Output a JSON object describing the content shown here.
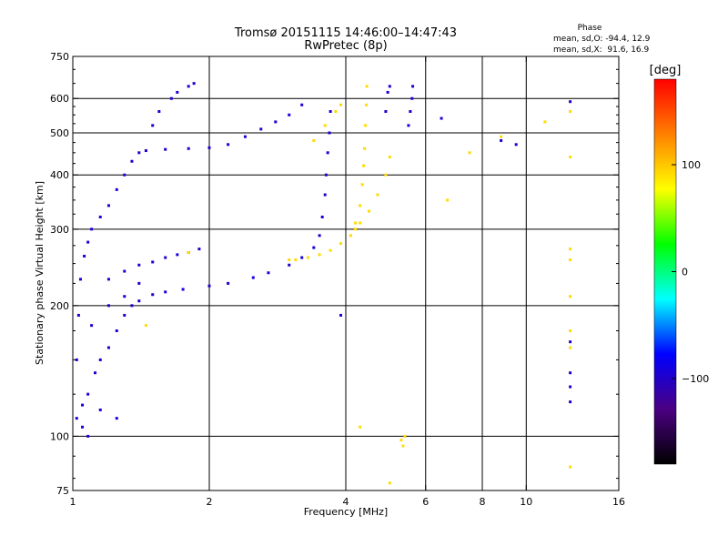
{
  "chart_data": {
    "type": "scatter",
    "title": "Tromsø 20151115 14:46:00–14:47:43",
    "subtitle": "RwPretec (8p)",
    "xlabel": "Frequency [MHz]",
    "ylabel": "Stationary phase Virtual Height [km]",
    "xscale": "log",
    "yscale": "log",
    "xlim": [
      1,
      16
    ],
    "ylim": [
      75,
      750
    ],
    "xticks": [
      1,
      2,
      4,
      6,
      8,
      10,
      16
    ],
    "xtick_labels": [
      "1",
      "2",
      "4",
      "6",
      "8",
      "10",
      "16"
    ],
    "x_vertical_gridlines": [
      2,
      4,
      6,
      8,
      10
    ],
    "yticks": [
      75,
      100,
      200,
      300,
      400,
      500,
      600,
      750
    ],
    "ytick_labels": [
      "75",
      "100",
      "200",
      "300",
      "400",
      "500",
      "600",
      "750"
    ],
    "y_horizontal_gridlines": [
      100,
      200,
      300,
      400,
      500,
      600
    ],
    "grid": true,
    "phase_stats": {
      "header": "Phase",
      "line_o": "mean, sd,O: -94.4, 12.9",
      "line_x": "mean, sd,X:  91.6, 16.9"
    },
    "colorbar": {
      "label": "[deg]",
      "range": [
        -180,
        180
      ],
      "ticks": [
        -100,
        0,
        100
      ],
      "tick_labels": [
        "−100",
        "0",
        "100"
      ],
      "colors": [
        "#000000",
        "#4b0082",
        "#0000ff",
        "#00ffff",
        "#00ff00",
        "#ffff00",
        "#ff8000",
        "#ff0000"
      ]
    },
    "series": [
      {
        "mode": "O",
        "phase_mean": -94.4,
        "points": [
          [
            1.02,
            110
          ],
          [
            1.05,
            118
          ],
          [
            1.08,
            125
          ],
          [
            1.12,
            140
          ],
          [
            1.15,
            150
          ],
          [
            1.2,
            160
          ],
          [
            1.25,
            175
          ],
          [
            1.3,
            190
          ],
          [
            1.35,
            200
          ],
          [
            1.4,
            205
          ],
          [
            1.5,
            212
          ],
          [
            1.6,
            215
          ],
          [
            1.75,
            218
          ],
          [
            2.0,
            222
          ],
          [
            2.2,
            225
          ],
          [
            2.5,
            232
          ],
          [
            2.7,
            238
          ],
          [
            3.0,
            248
          ],
          [
            3.2,
            258
          ],
          [
            3.4,
            272
          ],
          [
            3.5,
            290
          ],
          [
            3.55,
            320
          ],
          [
            3.6,
            360
          ],
          [
            3.62,
            400
          ],
          [
            3.65,
            450
          ],
          [
            3.68,
            500
          ],
          [
            3.7,
            560
          ],
          [
            1.02,
            150
          ],
          [
            1.03,
            190
          ],
          [
            1.04,
            230
          ],
          [
            1.06,
            260
          ],
          [
            1.08,
            280
          ],
          [
            1.1,
            300
          ],
          [
            1.15,
            320
          ],
          [
            1.2,
            340
          ],
          [
            1.25,
            370
          ],
          [
            1.3,
            400
          ],
          [
            1.35,
            430
          ],
          [
            1.4,
            450
          ],
          [
            1.45,
            455
          ],
          [
            1.6,
            458
          ],
          [
            1.8,
            460
          ],
          [
            2.0,
            462
          ],
          [
            2.2,
            470
          ],
          [
            2.4,
            490
          ],
          [
            2.6,
            510
          ],
          [
            2.8,
            530
          ],
          [
            3.0,
            550
          ],
          [
            3.2,
            580
          ],
          [
            1.2,
            230
          ],
          [
            1.3,
            240
          ],
          [
            1.4,
            248
          ],
          [
            1.5,
            252
          ],
          [
            1.6,
            258
          ],
          [
            1.7,
            262
          ],
          [
            1.8,
            265
          ],
          [
            1.9,
            270
          ],
          [
            1.65,
            600
          ],
          [
            1.7,
            620
          ],
          [
            1.8,
            640
          ],
          [
            1.85,
            650
          ],
          [
            1.5,
            520
          ],
          [
            1.55,
            560
          ],
          [
            5.5,
            520
          ],
          [
            5.55,
            560
          ],
          [
            5.6,
            600
          ],
          [
            5.62,
            640
          ],
          [
            4.9,
            560
          ],
          [
            4.95,
            620
          ],
          [
            5.0,
            640
          ],
          [
            1.05,
            105
          ],
          [
            1.08,
            100
          ],
          [
            1.15,
            115
          ],
          [
            1.25,
            110
          ],
          [
            1.1,
            180
          ],
          [
            1.2,
            200
          ],
          [
            1.3,
            210
          ],
          [
            1.4,
            225
          ],
          [
            12.5,
            590
          ],
          [
            12.5,
            120
          ],
          [
            12.5,
            130
          ],
          [
            12.5,
            165
          ],
          [
            12.5,
            140
          ],
          [
            6.5,
            540
          ],
          [
            8.8,
            480
          ],
          [
            9.5,
            470
          ],
          [
            3.9,
            190
          ]
        ]
      },
      {
        "mode": "X",
        "phase_mean": 91.6,
        "points": [
          [
            3.0,
            255
          ],
          [
            3.1,
            255
          ],
          [
            3.3,
            258
          ],
          [
            3.5,
            262
          ],
          [
            3.7,
            268
          ],
          [
            3.9,
            278
          ],
          [
            4.1,
            290
          ],
          [
            4.2,
            310
          ],
          [
            4.3,
            340
          ],
          [
            4.35,
            380
          ],
          [
            4.38,
            420
          ],
          [
            4.4,
            460
          ],
          [
            4.42,
            520
          ],
          [
            4.44,
            580
          ],
          [
            4.45,
            640
          ],
          [
            4.2,
            300
          ],
          [
            4.3,
            310
          ],
          [
            4.5,
            330
          ],
          [
            4.7,
            360
          ],
          [
            4.9,
            400
          ],
          [
            5.0,
            440
          ],
          [
            3.4,
            480
          ],
          [
            3.6,
            520
          ],
          [
            3.8,
            560
          ],
          [
            3.9,
            580
          ],
          [
            5.3,
            98
          ],
          [
            5.35,
            95
          ],
          [
            5.4,
            100
          ],
          [
            4.3,
            105
          ],
          [
            5.0,
            78
          ],
          [
            12.5,
            560
          ],
          [
            12.5,
            440
          ],
          [
            12.5,
            270
          ],
          [
            12.5,
            255
          ],
          [
            12.5,
            210
          ],
          [
            12.5,
            175
          ],
          [
            12.5,
            160
          ],
          [
            12.5,
            85
          ],
          [
            11.0,
            530
          ],
          [
            8.8,
            490
          ],
          [
            6.7,
            350
          ],
          [
            7.5,
            450
          ],
          [
            1.45,
            180
          ],
          [
            1.8,
            265
          ]
        ]
      }
    ]
  }
}
